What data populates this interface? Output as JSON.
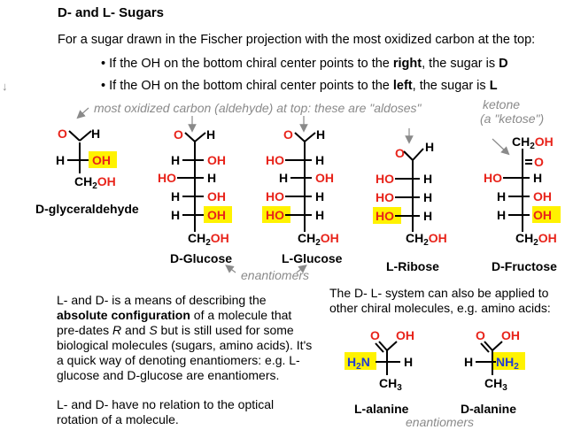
{
  "title": "D- and L- Sugars",
  "intro": "For a sugar drawn in the Fischer projection with the most oxidized carbon at the top:",
  "rules": [
    {
      "pre": "• If the OH on the bottom chiral center points to the ",
      "dir": "right",
      "mid": ", the sugar is ",
      "sugar": "D"
    },
    {
      "pre": "• If the OH on the bottom chiral center points to the ",
      "dir": "left",
      "mid": ", the sugar is ",
      "sugar": "L"
    }
  ],
  "notes": {
    "aldoses": "most oxidized carbon (aldehyde) at top: these are \"aldoses\"",
    "ketone": "ketone",
    "ketose": "(a \"ketose\")",
    "enantiomers_top": "enantiomers",
    "enantiomers_bottom": "enantiomers"
  },
  "molecules": {
    "d_glyceraldehyde": "D-glyceraldehyde",
    "d_glucose": "D-Glucose",
    "l_glucose": "L-Glucose",
    "l_ribose": "L-Ribose",
    "d_fructose": "D-Fructose",
    "l_alanine": "L-alanine",
    "d_alanine": "D-alanine"
  },
  "paragraph_left": {
    "p1_a": "L- and D- is a means of describing the",
    "p1_bold": "absolute configuration",
    "p1_b": " of a molecule that pre-dates ",
    "r": "R",
    "and": " and ",
    "s": "S",
    "p1_c": " but is still used for some biological molecules (sugars, amino acids). It's a quick way of denoting enantiomers: e.g. L-glucose and D-glucose are enantiomers.",
    "p2": "L- and D- have no relation to the optical rotation of a molecule."
  },
  "paragraph_right": "The D- L- system can also be applied to other chiral molecules, e.g. amino acids:",
  "colors": {
    "oxygen": "#e8231a",
    "nitrogen": "#1f3ad6",
    "highlight": "#fff200",
    "note": "#8a8a8a"
  }
}
